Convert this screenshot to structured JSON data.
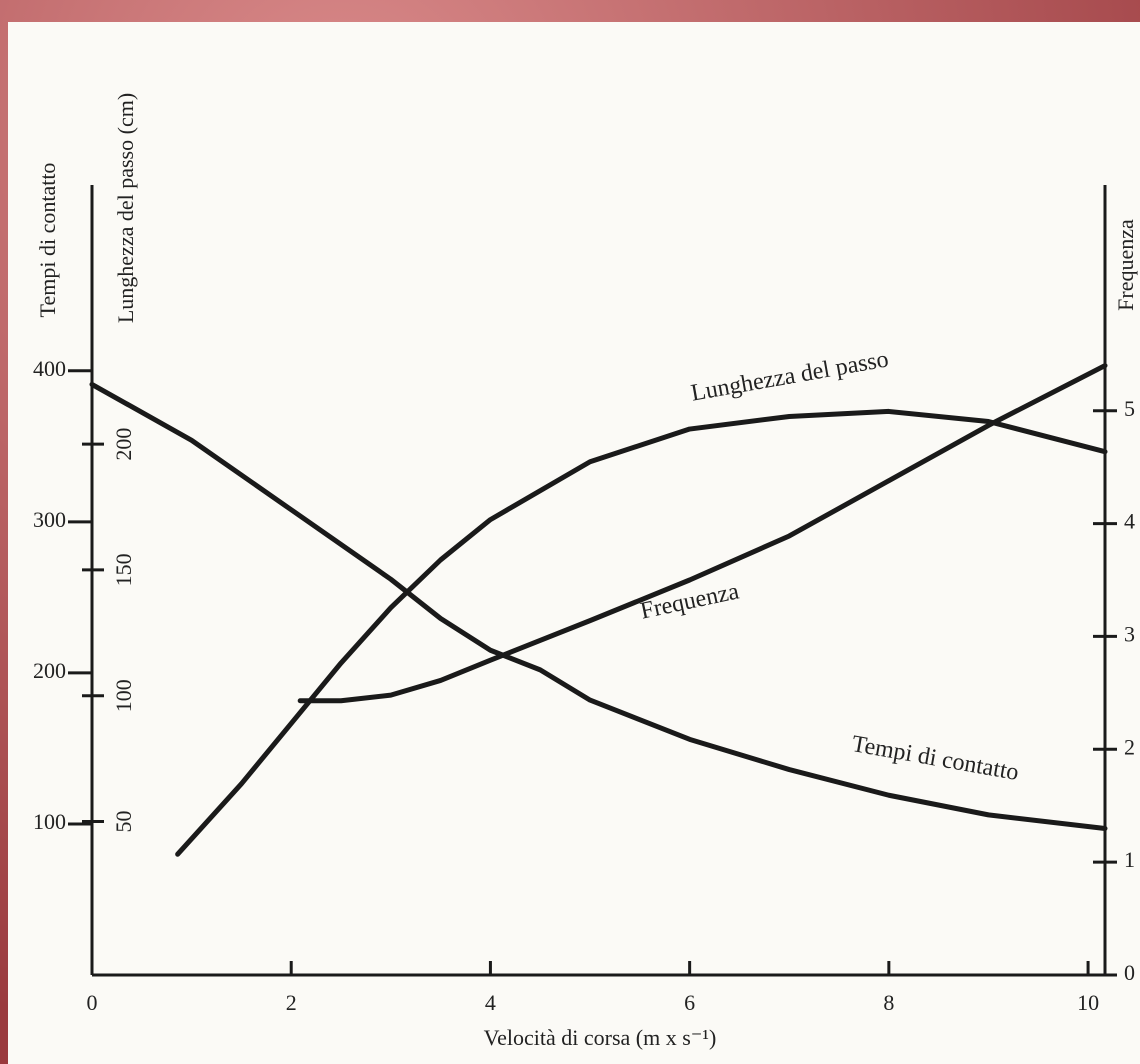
{
  "chart_data": {
    "type": "line",
    "xlabel": "Velocità di corsa (m x s⁻¹)",
    "ylabel": "Tempi di contatto",
    "y3label": "Lunghezza del passo (cm)",
    "y2label": "Frequenza",
    "xlim": [
      0,
      10.17
    ],
    "xticks": [
      0,
      2,
      4,
      6,
      8,
      10
    ],
    "ylim": [
      0,
      523
    ],
    "yticks": [
      100,
      200,
      300,
      400
    ],
    "y3lim": [
      -11,
      303
    ],
    "y3ticks": [
      50,
      100,
      150,
      200
    ],
    "y2lim": [
      0,
      7
    ],
    "y2ticks": [
      0,
      1,
      2,
      3,
      4,
      5
    ],
    "series": [
      {
        "name": "Tempi di contatto",
        "color": "#1a1a1a",
        "axis": "y",
        "x": [
          0,
          1,
          2,
          3,
          3.5,
          4,
          4.5,
          5,
          6,
          7,
          8,
          9,
          10.17
        ],
        "values": [
          391,
          354,
          308,
          262,
          236,
          215,
          202,
          182,
          156,
          136,
          119,
          106,
          97
        ]
      },
      {
        "name": "Lunghezza del passo",
        "color": "#1a1a1a",
        "axis": "y3",
        "x": [
          0.86,
          1.5,
          2,
          2.5,
          3,
          3.5,
          4,
          5,
          6,
          7,
          8,
          9,
          10.17
        ],
        "values": [
          37,
          65,
          89,
          113,
          135,
          154,
          170,
          193,
          206,
          211,
          213,
          209,
          197
        ]
      },
      {
        "name": "Frequenza",
        "color": "#1a1a1a",
        "axis": "y2",
        "x": [
          2.09,
          2.5,
          3,
          3.5,
          4,
          5,
          6,
          7,
          8,
          9,
          10.17
        ],
        "values": [
          2.43,
          2.43,
          2.48,
          2.61,
          2.79,
          3.14,
          3.5,
          3.89,
          4.38,
          4.87,
          5.4
        ]
      }
    ]
  }
}
